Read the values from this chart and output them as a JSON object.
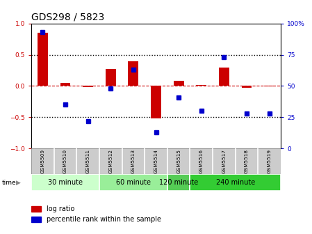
{
  "title": "GDS298 / 5823",
  "samples": [
    "GSM5509",
    "GSM5510",
    "GSM5511",
    "GSM5512",
    "GSM5513",
    "GSM5514",
    "GSM5515",
    "GSM5516",
    "GSM5517",
    "GSM5518",
    "GSM5519"
  ],
  "log_ratio": [
    0.85,
    0.05,
    -0.02,
    0.27,
    0.4,
    -0.52,
    0.08,
    0.02,
    0.29,
    -0.03,
    -0.01
  ],
  "percentile_rank": [
    93,
    35,
    22,
    48,
    63,
    13,
    41,
    30,
    73,
    28,
    28
  ],
  "groups": [
    {
      "label": "30 minute",
      "start": 0,
      "end": 3,
      "color": "#ccffcc"
    },
    {
      "label": "60 minute",
      "start": 3,
      "end": 6,
      "color": "#99ee99"
    },
    {
      "label": "120 minute",
      "start": 6,
      "end": 7,
      "color": "#55cc55"
    },
    {
      "label": "240 minute",
      "start": 7,
      "end": 11,
      "color": "#33cc33"
    }
  ],
  "bar_color": "#cc0000",
  "dot_color": "#0000cc",
  "ylim_left": [
    -1,
    1
  ],
  "ylim_right": [
    0,
    100
  ],
  "yticks_left": [
    -1,
    -0.5,
    0,
    0.5,
    1
  ],
  "yticks_right": [
    0,
    25,
    50,
    75,
    100
  ],
  "hline_color": "#cc0000",
  "dotted_color": "#000000",
  "bg_plot": "#ffffff",
  "bg_fig": "#ffffff",
  "title_fontsize": 10,
  "tick_fontsize": 6.5,
  "label_fontsize": 8,
  "legend_fontsize": 7
}
